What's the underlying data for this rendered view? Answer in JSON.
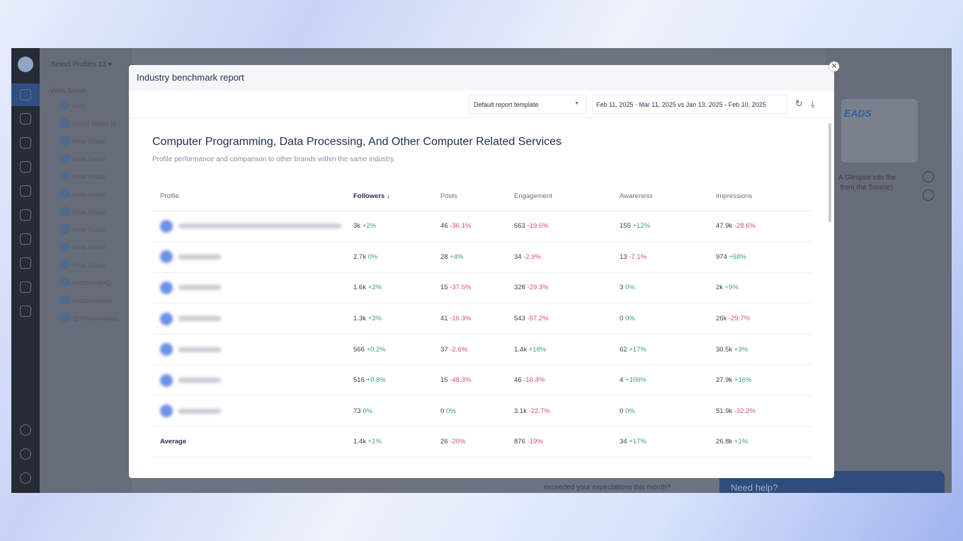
{
  "background_app": {
    "select_profiles_label": "Select Profiles",
    "select_profiles_count": "13",
    "tree_root": "Vista Social",
    "profiles": [
      "SMS",
      "Social Media M",
      "Vista Social",
      "Vista Social",
      "Vista Social",
      "Vista Social",
      "Vista Social",
      "Vista Social",
      "Vista Social",
      "Vista Social",
      "vistasocialHQ",
      "vistasocialapp",
      "@vistasocialapp"
    ],
    "card_caption": "A Glimpse into the\n from the Source)",
    "thumb_text": "EADS",
    "help_label": "Need help?",
    "bottom_question": "exceeded your expectations this month?"
  },
  "modal": {
    "title": "Industry benchmark report",
    "template_select": "Default report template",
    "date_range": "Feb 11, 2025 - Mar 11, 2025 vs Jan 13, 2025 - Feb 10, 2025",
    "heading": "Computer Programming, Data Processing, And Other Computer Related Services",
    "subheading": "Profile performance and comparison to other brands within the same industry.",
    "columns": {
      "profile": "Profile",
      "followers": "Followers",
      "posts": "Posts",
      "engagement": "Engagement",
      "awareness": "Awareness",
      "impressions": "Impressions"
    },
    "sort_indicator": "↓",
    "rows": [
      {
        "followers": [
          "3k",
          "+2%"
        ],
        "posts": [
          "46",
          "-36.1%"
        ],
        "engagement": [
          "663",
          "-19.6%"
        ],
        "awareness": [
          "155",
          "+12%"
        ],
        "impressions": [
          "47.9k",
          "-28.6%"
        ]
      },
      {
        "followers": [
          "2.7k",
          "0%"
        ],
        "posts": [
          "28",
          "+4%"
        ],
        "engagement": [
          "34",
          "-2.9%"
        ],
        "awareness": [
          "13",
          "-7.1%"
        ],
        "impressions": [
          "974",
          "+68%"
        ]
      },
      {
        "followers": [
          "1.6k",
          "+2%"
        ],
        "posts": [
          "15",
          "-37.5%"
        ],
        "engagement": [
          "328",
          "-29.3%"
        ],
        "awareness": [
          "3",
          "0%"
        ],
        "impressions": [
          "2k",
          "+9%"
        ]
      },
      {
        "followers": [
          "1.3k",
          "+3%"
        ],
        "posts": [
          "41",
          "-16.3%"
        ],
        "engagement": [
          "543",
          "-57.2%"
        ],
        "awareness": [
          "0",
          "0%"
        ],
        "impressions": [
          "26k",
          "-29.7%"
        ]
      },
      {
        "followers": [
          "566",
          "+0.2%"
        ],
        "posts": [
          "37",
          "-2.6%"
        ],
        "engagement": [
          "1.4k",
          "+18%"
        ],
        "awareness": [
          "62",
          "+17%"
        ],
        "impressions": [
          "30.5k",
          "+3%"
        ]
      },
      {
        "followers": [
          "516",
          "+0.8%"
        ],
        "posts": [
          "15",
          "-48.3%"
        ],
        "engagement": [
          "46",
          "-16.4%"
        ],
        "awareness": [
          "4",
          "+100%"
        ],
        "impressions": [
          "27.9k",
          "+16%"
        ]
      },
      {
        "followers": [
          "73",
          "0%"
        ],
        "posts": [
          "0",
          "0%"
        ],
        "engagement": [
          "3.1k",
          "-22.7%"
        ],
        "awareness": [
          "0",
          "0%"
        ],
        "impressions": [
          "51.9k",
          "-32.2%"
        ]
      }
    ],
    "average": {
      "label": "Average",
      "followers": [
        "1.4k",
        "+1%"
      ],
      "posts": [
        "26",
        "-20%"
      ],
      "engagement": [
        "876",
        "-19%"
      ],
      "awareness": [
        "34",
        "+17%"
      ],
      "impressions": [
        "26.8k",
        "+1%"
      ]
    },
    "colors": {
      "positive": "#3aa46a",
      "negative": "#d9506a",
      "heading": "#1f2d4d"
    }
  }
}
